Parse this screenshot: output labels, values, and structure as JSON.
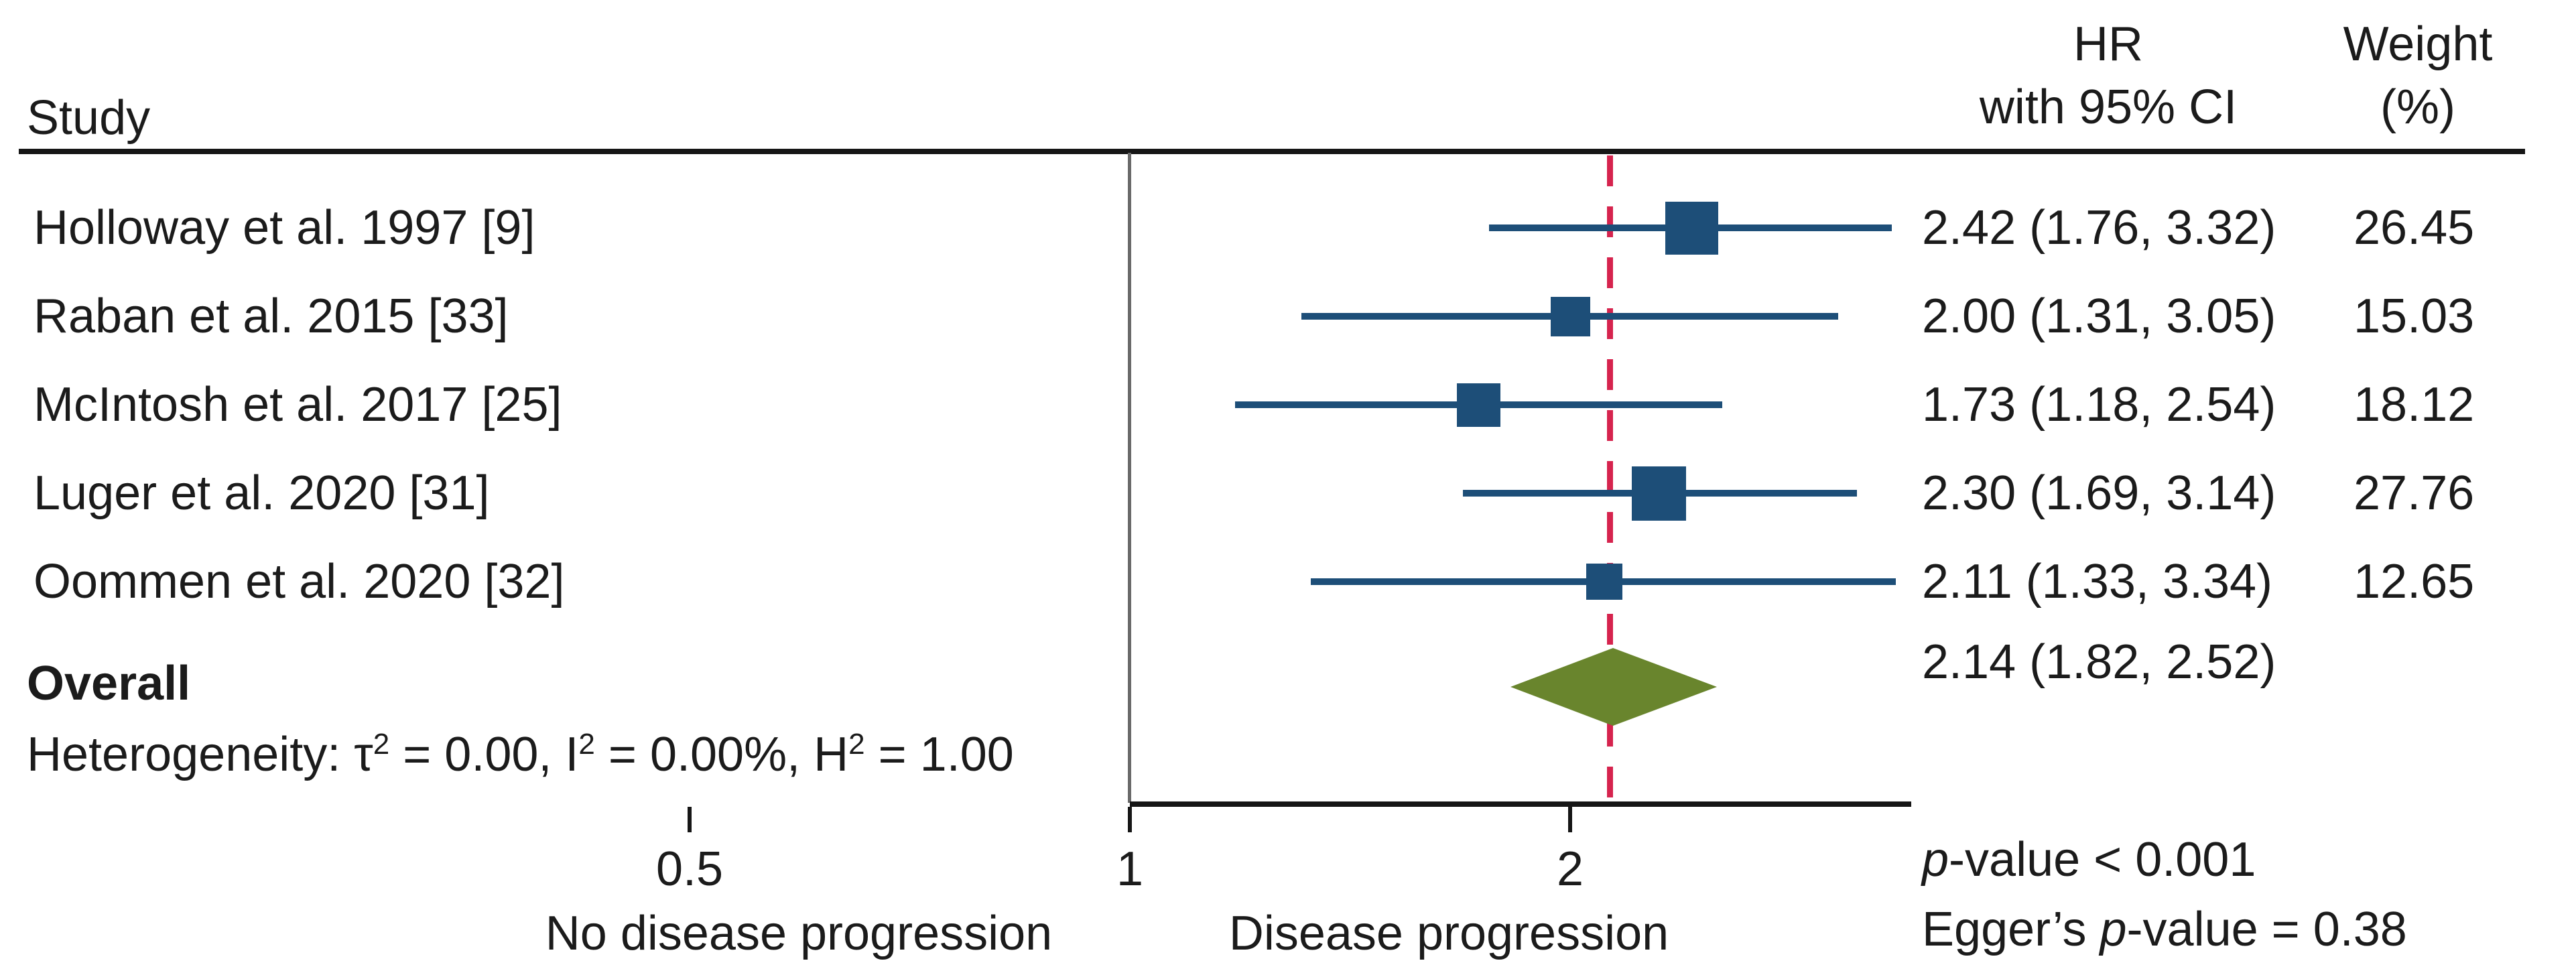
{
  "header": {
    "study": "Study",
    "hr_line1": "HR",
    "hr_line2": "with 95% CI",
    "weight_line1": "Weight",
    "weight_line2": "(%)"
  },
  "chart_data": {
    "type": "forest",
    "x_scale": "log",
    "axis": {
      "ticks": [
        {
          "label": "0.5",
          "value": 0.5
        },
        {
          "label": "1",
          "value": 1
        },
        {
          "label": "2",
          "value": 2
        }
      ],
      "caption_left": "No disease progression",
      "caption_right": "Disease progression",
      "range_drawn": [
        1,
        3.42
      ]
    },
    "reference_line_value": 2.14,
    "studies": [
      {
        "label": "Holloway et al. 1997 [9]",
        "hr": 2.42,
        "ci_low": 1.76,
        "ci_high": 3.32,
        "weight": 26.45,
        "hr_ci_text": "2.42 (1.76, 3.32)",
        "weight_text": "26.45"
      },
      {
        "label": "Raban et al. 2015 [33]",
        "hr": 2.0,
        "ci_low": 1.31,
        "ci_high": 3.05,
        "weight": 15.03,
        "hr_ci_text": "2.00 (1.31, 3.05)",
        "weight_text": "15.03"
      },
      {
        "label": "McIntosh et al. 2017 [25]",
        "hr": 1.73,
        "ci_low": 1.18,
        "ci_high": 2.54,
        "weight": 18.12,
        "hr_ci_text": "1.73 (1.18, 2.54)",
        "weight_text": "18.12"
      },
      {
        "label": "Luger et al. 2020 [31]",
        "hr": 2.3,
        "ci_low": 1.69,
        "ci_high": 3.14,
        "weight": 27.76,
        "hr_ci_text": "2.30 (1.69, 3.14)",
        "weight_text": "27.76"
      },
      {
        "label": "Oommen et al. 2020 [32]",
        "hr": 2.11,
        "ci_low": 1.33,
        "ci_high": 3.34,
        "weight": 12.65,
        "hr_ci_text": "2.11 (1.33, 3.34)",
        "weight_text": "12.65"
      }
    ],
    "overall": {
      "label": "Overall",
      "hr": 2.14,
      "ci_low": 1.82,
      "ci_high": 2.52,
      "hr_ci_text": "2.14 (1.82, 2.52)"
    },
    "heterogeneity_segments": [
      {
        "t": "Heterogeneity: τ"
      },
      {
        "t": "2",
        "sup": true
      },
      {
        "t": " = 0.00, I"
      },
      {
        "t": "2",
        "sup": true
      },
      {
        "t": " = 0.00%, H"
      },
      {
        "t": "2",
        "sup": true
      },
      {
        "t": " = 1.00"
      }
    ],
    "footnotes": {
      "p_italic": "p",
      "p_rest": "-value < 0.001",
      "egger_pre": "Egger’s ",
      "egger_italic": "p",
      "egger_rest": "-value = 0.38"
    },
    "colors": {
      "marker": "#1d4e78",
      "ci_line": "#1d4e78",
      "diamond": "#69852d",
      "reference_line": "#d6244e"
    }
  }
}
